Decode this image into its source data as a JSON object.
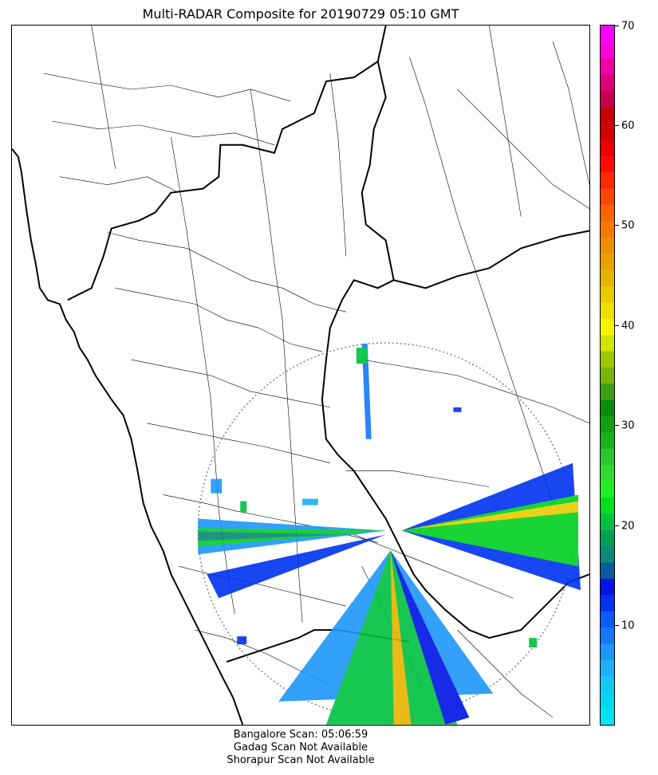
{
  "title": "Multi-RADAR Composite for 20190729 05:10 GMT",
  "colorbar": {
    "min": 0,
    "max": 70,
    "ticks": [
      "10",
      "20",
      "30",
      "40",
      "50",
      "60",
      "70"
    ],
    "colors": [
      "#00e5ee",
      "#00d8f0",
      "#14c8f5",
      "#1eb0f8",
      "#1e96fa",
      "#1478fa",
      "#0a5cf5",
      "#0032f0",
      "#0014e6",
      "#0a5a9c",
      "#0a8a78",
      "#00a050",
      "#00c040",
      "#00e020",
      "#20f020",
      "#30dc30",
      "#2ac82a",
      "#1ab41a",
      "#10a010",
      "#0a8c0a",
      "#3ca014",
      "#78b40a",
      "#a0c800",
      "#d2e600",
      "#f5f500",
      "#f0e000",
      "#e8cc00",
      "#e6b400",
      "#eaa000",
      "#f08c00",
      "#f57800",
      "#fa6400",
      "#ff4600",
      "#ff2800",
      "#ff0a00",
      "#eb0000",
      "#d20000",
      "#c80000",
      "#c8004b",
      "#dc0078",
      "#f000aa",
      "#ff00dc",
      "#ff00ff"
    ]
  },
  "captions": [
    "Bangalore Scan: 05:06:59",
    "Gadag Scan Not Available",
    "Shorapur Scan Not Available"
  ]
}
